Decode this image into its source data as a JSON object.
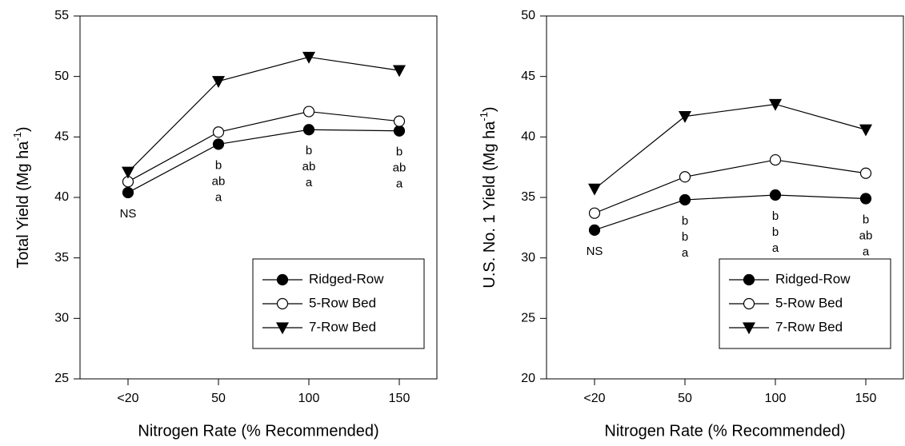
{
  "chart_data": [
    {
      "type": "line",
      "ylabel": [
        "Total  Yield (Mg ha",
        "-1",
        ")"
      ],
      "xlabel": "Nitrogen Rate (% Recommended)",
      "categories": [
        "<20",
        "50",
        "100",
        "150"
      ],
      "ylim": [
        25,
        55
      ],
      "yticks": [
        25,
        30,
        35,
        40,
        45,
        50,
        55
      ],
      "legend": "lower right",
      "series": [
        {
          "name": "Ridged-Row",
          "color": "#000000",
          "marker": "circle",
          "filled": true,
          "values": [
            40.4,
            44.4,
            45.6,
            45.5
          ]
        },
        {
          "name": "5-Row Bed",
          "color": "#000000",
          "marker": "circle",
          "filled": false,
          "values": [
            41.3,
            45.4,
            47.1,
            46.3
          ]
        },
        {
          "name": "7-Row Bed",
          "color": "#000000",
          "marker": "triangle-down",
          "filled": true,
          "values": [
            42.1,
            49.6,
            51.6,
            50.5
          ]
        }
      ],
      "annotations": [
        [
          "NS"
        ],
        [
          "b",
          "ab",
          "a"
        ],
        [
          "b",
          "ab",
          "a"
        ],
        [
          "b",
          "ab",
          "a"
        ]
      ]
    },
    {
      "type": "line",
      "ylabel": [
        "U.S. No. 1 Yield (Mg ha",
        "-1",
        ")"
      ],
      "xlabel": "Nitrogen Rate (% Recommended)",
      "categories": [
        "<20",
        "50",
        "100",
        "150"
      ],
      "ylim": [
        20,
        50
      ],
      "yticks": [
        20,
        25,
        30,
        35,
        40,
        45,
        50
      ],
      "legend": "lower right",
      "series": [
        {
          "name": "Ridged-Row",
          "color": "#000000",
          "marker": "circle",
          "filled": true,
          "values": [
            32.3,
            34.8,
            35.2,
            34.9
          ]
        },
        {
          "name": "5-Row Bed",
          "color": "#000000",
          "marker": "circle",
          "filled": false,
          "values": [
            33.7,
            36.7,
            38.1,
            37.0
          ]
        },
        {
          "name": "7-Row Bed",
          "color": "#000000",
          "marker": "triangle-down",
          "filled": true,
          "values": [
            35.7,
            41.7,
            42.7,
            40.6
          ]
        }
      ],
      "annotations": [
        [
          "NS"
        ],
        [
          "b",
          "b",
          "a"
        ],
        [
          "b",
          "b",
          "a"
        ],
        [
          "b",
          "ab",
          "a"
        ]
      ]
    }
  ]
}
